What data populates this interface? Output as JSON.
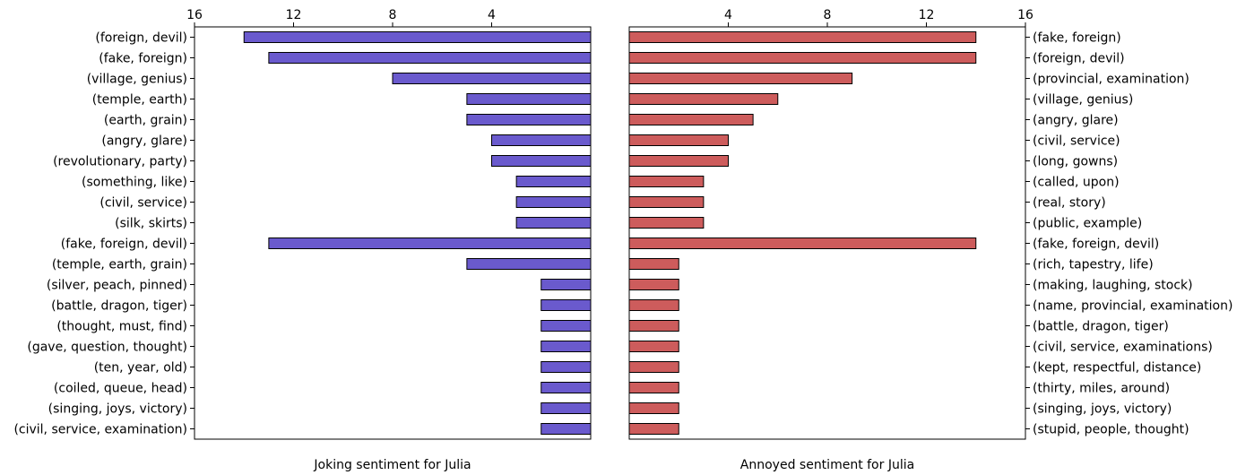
{
  "chart_data": [
    {
      "type": "bar",
      "orientation": "horizontal",
      "direction": "reversed",
      "xlabel": "Joking sentiment for Julia",
      "xlim": [
        16,
        0
      ],
      "xticks": [
        "16",
        "12",
        "8",
        "4"
      ],
      "color": "#6a5acd",
      "grid": false,
      "categories": [
        "(foreign, devil)",
        "(fake, foreign)",
        "(village, genius)",
        "(temple, earth)",
        "(earth, grain)",
        "(angry, glare)",
        "(revolutionary, party)",
        "(something, like)",
        "(civil, service)",
        "(silk, skirts)",
        "(fake, foreign, devil)",
        "(temple, earth, grain)",
        "(silver, peach, pinned)",
        "(battle, dragon, tiger)",
        "(thought, must, find)",
        "(gave, question, thought)",
        "(ten, year, old)",
        "(coiled, queue, head)",
        "(singing, joys, victory)",
        "(civil, service, examination)"
      ],
      "values": [
        14,
        13,
        8,
        5,
        5,
        4,
        4,
        3,
        3,
        3,
        13,
        5,
        2,
        2,
        2,
        2,
        2,
        2,
        2,
        2
      ]
    },
    {
      "type": "bar",
      "orientation": "horizontal",
      "xlabel": "Annoyed sentiment for Julia",
      "xlim": [
        0,
        16
      ],
      "xticks": [
        "4",
        "8",
        "12",
        "16"
      ],
      "color": "#cd5c5c",
      "grid": false,
      "categories": [
        "(fake, foreign)",
        "(foreign, devil)",
        "(provincial, examination)",
        "(village, genius)",
        "(angry, glare)",
        "(civil, service)",
        "(long, gowns)",
        "(called, upon)",
        "(real, story)",
        "(public, example)",
        "(fake, foreign, devil)",
        "(rich, tapestry, life)",
        "(making, laughing, stock)",
        "(name, provincial, examination)",
        "(battle, dragon, tiger)",
        "(civil, service, examinations)",
        "(kept, respectful, distance)",
        "(thirty, miles, around)",
        "(singing, joys, victory)",
        "(stupid, people, thought)"
      ],
      "values": [
        14,
        14,
        9,
        6,
        5,
        4,
        4,
        3,
        3,
        3,
        14,
        2,
        2,
        2,
        2,
        2,
        2,
        2,
        2,
        2
      ]
    }
  ]
}
